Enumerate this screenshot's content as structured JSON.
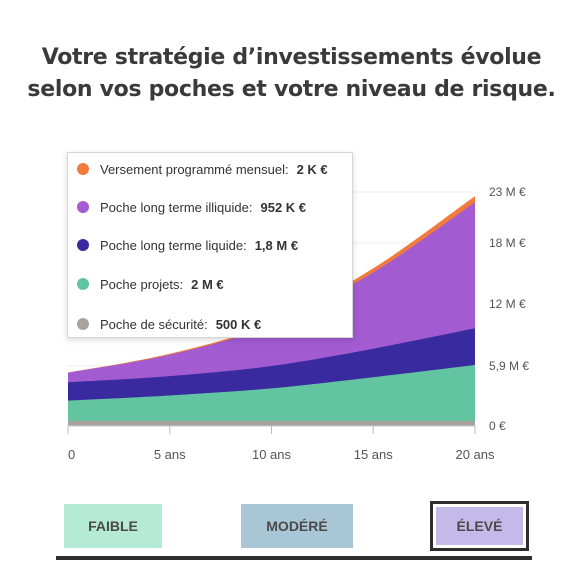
{
  "headline": {
    "line1": "Votre stratégie d’investissements évolue",
    "line2": "selon vos poches et votre niveau de risque."
  },
  "legend": [
    {
      "label": "Versement programmé mensuel:",
      "value": "2 K €",
      "color": "#f07b3c"
    },
    {
      "label": "Poche long terme illiquide:",
      "value": "952 K €",
      "color": "#a35bd1"
    },
    {
      "label": "Poche long terme liquide:",
      "value": "1,8 M €",
      "color": "#3a2aa0"
    },
    {
      "label": "Poche projets:",
      "value": "2 M €",
      "color": "#63c4a2"
    },
    {
      "label": "Poche de sécurité:",
      "value": "500 K €",
      "color": "#a8a39c"
    }
  ],
  "chart_data": {
    "type": "area",
    "stacked": true,
    "x": [
      0,
      5,
      10,
      15,
      20
    ],
    "x_tick_labels": [
      "0",
      "5 ans",
      "10 ans",
      "15 ans",
      "20 ans"
    ],
    "y_tick_labels": [
      "0 €",
      "5,9 M €",
      "12 M €",
      "18 M €",
      "23 M €"
    ],
    "y_tick_values": [
      0,
      5.9,
      12,
      18,
      23
    ],
    "ylim": [
      0,
      23
    ],
    "unit": "M €",
    "series": [
      {
        "name": "Poche de sécurité",
        "color": "#a8a39c",
        "values": [
          0.5,
          0.5,
          0.5,
          0.5,
          0.5
        ]
      },
      {
        "name": "Poche projets",
        "color": "#63c4a2",
        "values": [
          2.0,
          2.5,
          3.2,
          4.3,
          5.5
        ]
      },
      {
        "name": "Poche long terme liquide",
        "color": "#3a2aa0",
        "values": [
          1.8,
          1.9,
          2.2,
          2.8,
          3.6
        ]
      },
      {
        "name": "Poche long terme illiquide",
        "color": "#a35bd1",
        "values": [
          0.95,
          2.1,
          4.0,
          7.5,
          12.4
        ]
      },
      {
        "name": "Versement programmé mensuel",
        "color": "#f07b3c",
        "values": [
          0.0,
          0.1,
          0.2,
          0.4,
          0.6
        ]
      }
    ]
  },
  "risk_levels": [
    {
      "label": "FAIBLE",
      "bg": "#b4ead6",
      "selected": false
    },
    {
      "label": "MODÉRÉ",
      "bg": "#a9c6d6",
      "selected": false
    },
    {
      "label": "ÉLEVÉ",
      "bg": "#c4baea",
      "selected": true
    }
  ]
}
